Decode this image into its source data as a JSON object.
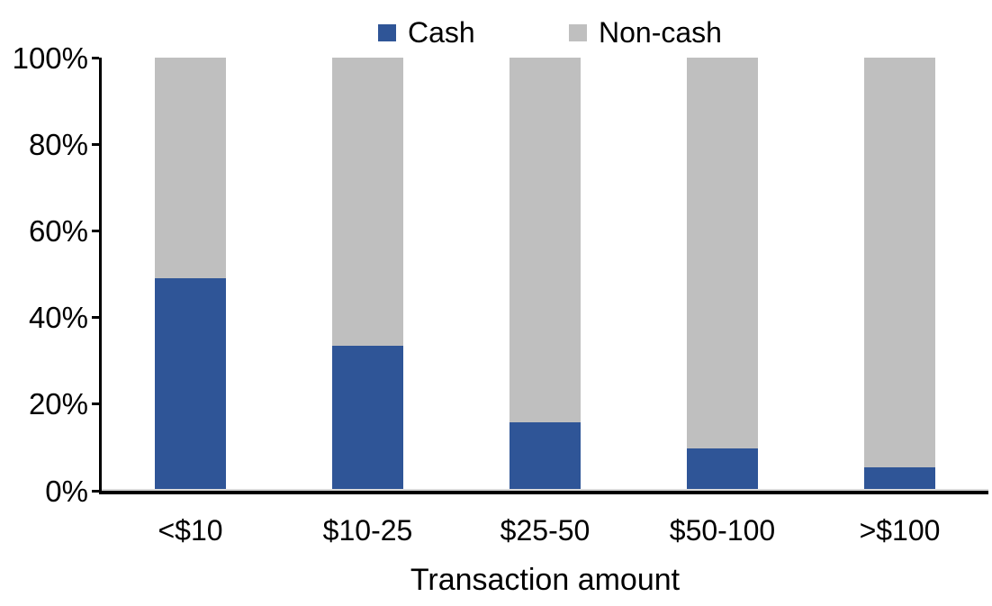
{
  "chart": {
    "xlabel": "Transaction amount"
  },
  "chart_data": {
    "type": "bar",
    "stacked": true,
    "orientation": "vertical",
    "title": "",
    "xlabel": "Transaction amount",
    "ylabel": "",
    "categories": [
      "<$10",
      "$10-25",
      "$25-50",
      "$50-100",
      ">$100"
    ],
    "series": [
      {
        "name": "Cash",
        "color": "#2F5597",
        "values": [
          49,
          33.5,
          15.8,
          9.8,
          5.5
        ]
      },
      {
        "name": "Non-cash",
        "color": "#BFBFBF",
        "values": [
          51,
          66.5,
          84.2,
          90.2,
          94.5
        ]
      }
    ],
    "ylim": [
      0,
      100
    ],
    "yticks": [
      0,
      20,
      40,
      60,
      80,
      100
    ],
    "ytick_suffix": "%",
    "legend_position": "top",
    "grid": false,
    "colors": {
      "cash": "#2F5597",
      "noncash": "#BFBFBF",
      "axis": "#000000",
      "text": "#000000",
      "background": "#FFFFFF"
    }
  }
}
